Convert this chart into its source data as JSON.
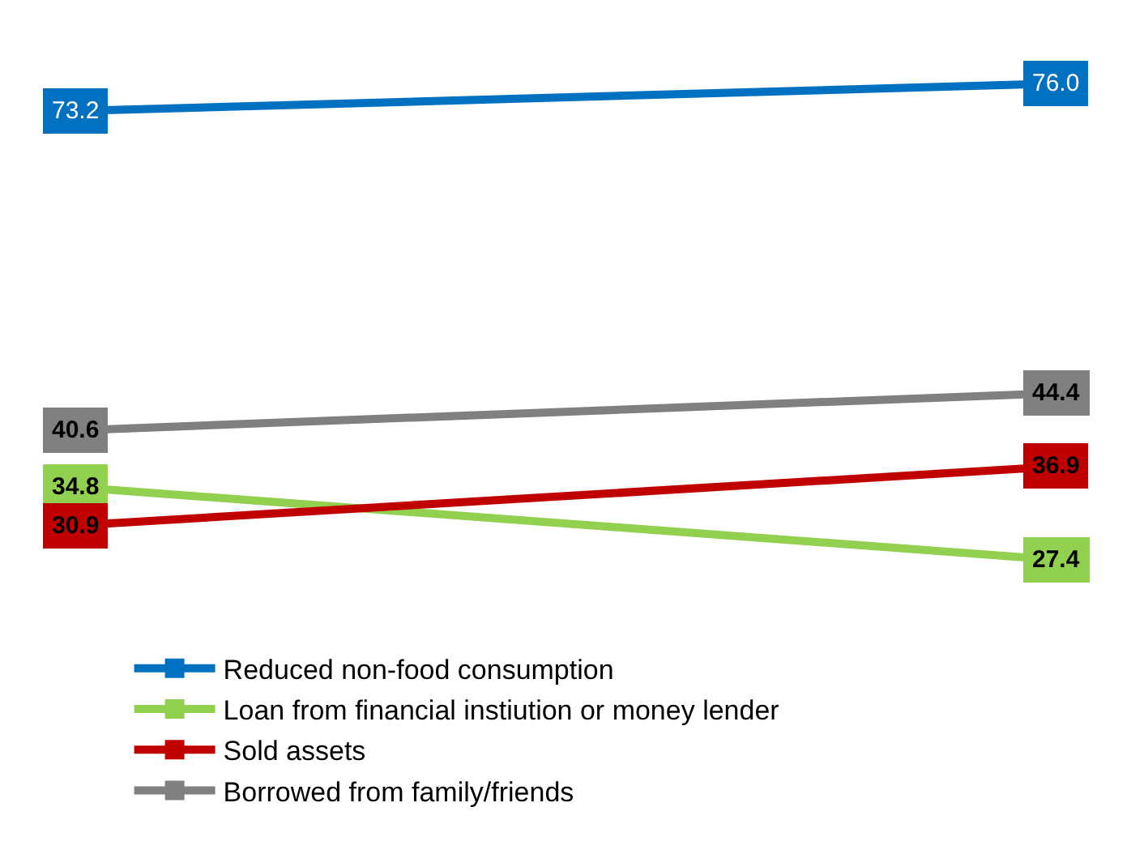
{
  "chart_data": {
    "type": "line",
    "categories": [
      null,
      null
    ],
    "series": [
      {
        "name": "Reduced non-food consumption",
        "color": "#0070c0",
        "values": [
          73.2,
          76.0
        ],
        "value_labels": [
          "73.2",
          "76.0"
        ]
      },
      {
        "name": "Loan from financial instiution or money lender",
        "color": "#92d050",
        "values": [
          34.8,
          27.4
        ],
        "value_labels": [
          "34.8",
          "27.4"
        ]
      },
      {
        "name": "Sold assets",
        "color": "#c00000",
        "values": [
          30.9,
          36.9
        ],
        "value_labels": [
          "30.9",
          "36.9"
        ]
      },
      {
        "name": "Borrowed from family/friends",
        "color": "#808080",
        "values": [
          40.6,
          44.4
        ],
        "value_labels": [
          "40.6",
          "44.4"
        ]
      }
    ],
    "legend": "bottom",
    "line_style": "solid",
    "marker": "square"
  }
}
